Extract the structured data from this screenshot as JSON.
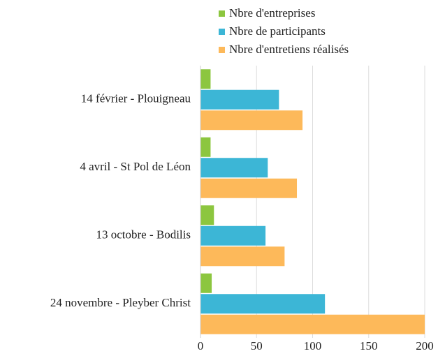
{
  "chart_data": {
    "type": "hbar",
    "categories": [
      "14 février - Plouigneau",
      "4 avril - St Pol de Léon",
      "13 octobre - Bodilis",
      "24 novembre - Pleyber Christ"
    ],
    "series": [
      {
        "name": "Nbre d'entreprises",
        "color": "#8cc63f",
        "values": [
          9,
          9,
          12,
          10
        ]
      },
      {
        "name": "Nbre de participants",
        "color": "#3cb6d6",
        "values": [
          70,
          60,
          58,
          111
        ]
      },
      {
        "name": "Nbre d'entretiens réalisés",
        "color": "#fdb95a",
        "values": [
          91,
          86,
          75,
          200
        ]
      }
    ],
    "xlim": [
      0,
      200
    ],
    "xticks": [
      0,
      50,
      100,
      150,
      200
    ],
    "grid": true,
    "legend": "top"
  }
}
